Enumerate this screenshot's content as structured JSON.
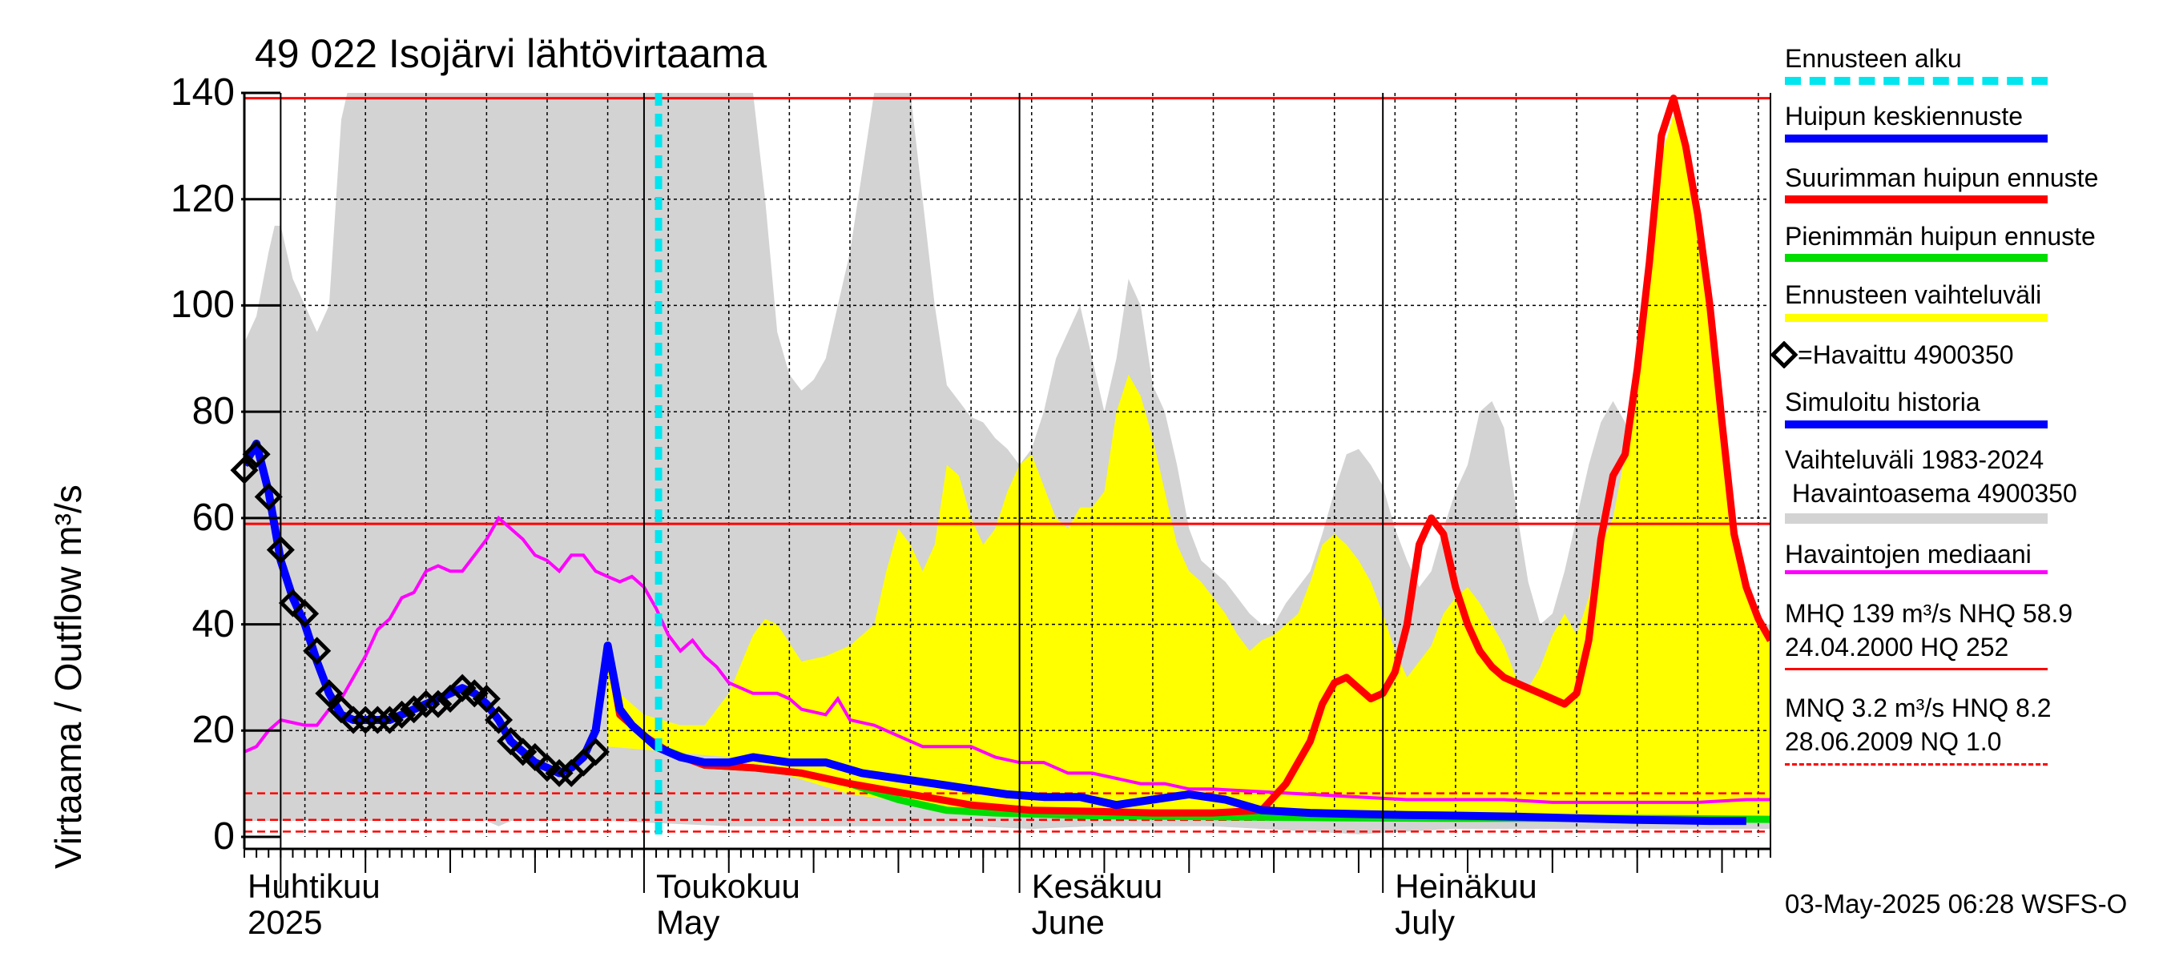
{
  "title": "49 022 Isojärvi lähtövirtaama",
  "ylabel": "Virtaama / Outflow    m³/s",
  "yticks": [
    "0",
    "20",
    "40",
    "60",
    "80",
    "100",
    "120",
    "140"
  ],
  "months": [
    {
      "fi": "Huhtikuu",
      "en": "2025"
    },
    {
      "fi": "Toukokuu",
      "en": "May"
    },
    {
      "fi": "Kesäkuu",
      "en": "June"
    },
    {
      "fi": "Heinäkuu",
      "en": "July"
    }
  ],
  "footer": "03-May-2025 06:28 WSFS-O",
  "legend": {
    "forecast_start": "Ennusteen alku",
    "mean_peak": "Huipun keskiennuste",
    "max_peak": "Suurimman huipun ennuste",
    "min_peak": "Pienimmän huipun ennuste",
    "range": "Ennusteen vaihteluväli",
    "observed": "=Havaittu 4900350",
    "simulated": "Simuloitu historia",
    "hist_range_1": "Vaihteluväli 1983-2024",
    "hist_range_2": " Havaintoasema 4900350",
    "median": "Havaintojen mediaani",
    "mhq_1": "MHQ  139 m³/s NHQ 58.9",
    "mhq_2": "24.04.2000 HQ  252",
    "mnq_1": "MNQ  3.2 m³/s HNQ  8.2",
    "mnq_2": "28.06.2009 NQ  1.0"
  },
  "colors": {
    "forecast_start": "#00e5ee",
    "mean": "#0000ff",
    "max": "#ff0000",
    "min": "#00dd00",
    "range": "#ffff00",
    "hist": "#d3d3d3",
    "median": "#ff00ff",
    "ref": "#ff0000"
  },
  "chart_data": {
    "type": "line",
    "x_unit": "day since 2025-03-29",
    "x_range_dates": [
      "2025-03-29",
      "2025-08-01"
    ],
    "ylim": [
      0,
      140
    ],
    "forecast_start_date": "2025-05-03",
    "reference_lines": {
      "MHQ": 139,
      "NHQ": 58.9,
      "HNQ": 8.2,
      "MNQ": 3.2,
      "NQ": 1.0
    },
    "observed": [
      [
        0,
        69
      ],
      [
        1,
        72
      ],
      [
        2,
        64
      ],
      [
        3,
        54
      ],
      [
        4,
        44
      ],
      [
        5,
        42
      ],
      [
        6,
        35
      ],
      [
        7,
        27
      ],
      [
        8,
        24
      ],
      [
        9,
        22
      ],
      [
        10,
        22
      ],
      [
        11,
        22
      ],
      [
        12,
        22
      ],
      [
        13,
        23
      ],
      [
        14,
        24
      ],
      [
        15,
        25
      ],
      [
        16,
        25
      ],
      [
        17,
        26
      ],
      [
        18,
        28
      ],
      [
        19,
        27
      ],
      [
        20,
        26
      ],
      [
        21,
        22
      ],
      [
        22,
        18
      ],
      [
        23,
        16
      ],
      [
        24,
        15
      ],
      [
        25,
        13
      ],
      [
        26,
        12
      ],
      [
        27,
        12
      ],
      [
        28,
        14
      ],
      [
        29,
        16
      ]
    ],
    "simulated": [
      [
        0,
        70
      ],
      [
        1,
        74
      ],
      [
        2,
        65
      ],
      [
        3,
        52
      ],
      [
        4,
        45
      ],
      [
        5,
        40
      ],
      [
        6,
        33
      ],
      [
        7,
        27
      ],
      [
        8,
        23
      ],
      [
        9,
        22
      ],
      [
        10,
        22
      ],
      [
        11,
        22
      ],
      [
        12,
        22
      ],
      [
        13,
        23
      ],
      [
        14,
        24
      ],
      [
        15,
        25
      ],
      [
        16,
        26
      ],
      [
        17,
        27
      ],
      [
        18,
        28
      ],
      [
        19,
        27
      ],
      [
        20,
        25
      ],
      [
        21,
        22
      ],
      [
        22,
        18
      ],
      [
        23,
        16
      ],
      [
        24,
        14
      ],
      [
        25,
        13
      ],
      [
        26,
        12
      ],
      [
        27,
        13
      ],
      [
        28,
        15
      ],
      [
        29,
        20
      ],
      [
        30,
        36
      ],
      [
        31,
        24
      ],
      [
        32,
        21
      ],
      [
        34,
        17
      ],
      [
        36,
        15
      ],
      [
        38,
        14
      ],
      [
        40,
        14
      ],
      [
        42,
        15
      ],
      [
        45,
        14
      ],
      [
        48,
        14
      ],
      [
        51,
        12
      ],
      [
        54,
        11
      ],
      [
        57,
        10
      ],
      [
        60,
        9
      ],
      [
        63,
        8
      ],
      [
        66,
        7.5
      ],
      [
        69,
        7.5
      ],
      [
        72,
        6
      ],
      [
        75,
        7
      ],
      [
        78,
        8
      ],
      [
        81,
        7
      ],
      [
        84,
        5
      ],
      [
        88,
        4.5
      ],
      [
        92,
        4.3
      ],
      [
        96,
        4.1
      ],
      [
        100,
        4
      ],
      [
        105,
        3.8
      ],
      [
        110,
        3.5
      ],
      [
        115,
        3.2
      ],
      [
        118,
        3.1
      ],
      [
        121,
        3.0
      ],
      [
        124,
        3.0
      ]
    ],
    "max_forecast": [
      [
        30,
        36
      ],
      [
        31,
        23
      ],
      [
        33,
        19
      ],
      [
        35,
        16
      ],
      [
        38,
        13.5
      ],
      [
        42,
        13
      ],
      [
        46,
        12
      ],
      [
        50,
        10
      ],
      [
        55,
        8
      ],
      [
        60,
        6
      ],
      [
        65,
        5
      ],
      [
        70,
        4.8
      ],
      [
        75,
        4.5
      ],
      [
        80,
        4.5
      ],
      [
        84,
        5
      ],
      [
        86,
        10
      ],
      [
        88,
        18
      ],
      [
        89,
        25
      ],
      [
        90,
        29
      ],
      [
        91,
        30
      ],
      [
        92,
        28
      ],
      [
        93,
        26
      ],
      [
        94,
        27
      ],
      [
        95,
        31
      ],
      [
        96,
        40
      ],
      [
        97,
        55
      ],
      [
        98,
        60
      ],
      [
        99,
        57
      ],
      [
        100,
        47
      ],
      [
        101,
        40
      ],
      [
        102,
        35
      ],
      [
        103,
        32
      ],
      [
        104,
        30
      ],
      [
        105,
        29
      ],
      [
        106,
        28
      ],
      [
        107,
        27
      ],
      [
        108,
        26
      ],
      [
        109,
        25
      ],
      [
        110,
        27
      ],
      [
        111,
        37
      ],
      [
        112,
        56
      ],
      [
        113,
        68
      ],
      [
        114,
        72
      ],
      [
        115,
        88
      ],
      [
        116,
        108
      ],
      [
        117,
        132
      ],
      [
        118,
        139
      ],
      [
        119,
        130
      ],
      [
        120,
        117
      ],
      [
        121,
        100
      ],
      [
        122,
        78
      ],
      [
        123,
        57
      ],
      [
        124,
        47
      ],
      [
        125,
        41
      ],
      [
        126,
        37
      ]
    ],
    "min_forecast": [
      [
        30,
        36
      ],
      [
        31,
        23
      ],
      [
        34,
        17
      ],
      [
        38,
        13.5
      ],
      [
        42,
        13
      ],
      [
        46,
        12
      ],
      [
        50,
        10
      ],
      [
        54,
        7
      ],
      [
        58,
        5
      ],
      [
        62,
        4.5
      ],
      [
        70,
        4
      ],
      [
        80,
        3.8
      ],
      [
        90,
        3.6
      ],
      [
        100,
        3.5
      ],
      [
        110,
        3.5
      ],
      [
        120,
        3.4
      ],
      [
        126,
        3.3
      ]
    ],
    "median": [
      [
        0,
        16
      ],
      [
        1,
        17
      ],
      [
        2,
        20
      ],
      [
        3,
        22
      ],
      [
        5,
        21
      ],
      [
        6,
        21
      ],
      [
        7,
        24
      ],
      [
        8,
        26
      ],
      [
        9,
        30
      ],
      [
        10,
        34
      ],
      [
        11,
        39
      ],
      [
        12,
        41
      ],
      [
        13,
        45
      ],
      [
        14,
        46
      ],
      [
        15,
        50
      ],
      [
        16,
        51
      ],
      [
        17,
        50
      ],
      [
        18,
        50
      ],
      [
        19,
        53
      ],
      [
        20,
        56
      ],
      [
        21,
        60
      ],
      [
        22,
        58
      ],
      [
        23,
        56
      ],
      [
        24,
        53
      ],
      [
        25,
        52
      ],
      [
        26,
        50
      ],
      [
        27,
        53
      ],
      [
        28,
        53
      ],
      [
        29,
        50
      ],
      [
        30,
        49
      ],
      [
        31,
        48
      ],
      [
        32,
        49
      ],
      [
        33,
        47
      ],
      [
        34,
        43
      ],
      [
        35,
        38
      ],
      [
        36,
        35
      ],
      [
        37,
        37
      ],
      [
        38,
        34
      ],
      [
        39,
        32
      ],
      [
        40,
        29
      ],
      [
        41,
        28
      ],
      [
        42,
        27
      ],
      [
        44,
        27
      ],
      [
        45,
        26
      ],
      [
        46,
        24
      ],
      [
        48,
        23
      ],
      [
        49,
        26
      ],
      [
        50,
        22
      ],
      [
        52,
        21
      ],
      [
        54,
        19
      ],
      [
        56,
        17
      ],
      [
        58,
        17
      ],
      [
        60,
        17
      ],
      [
        62,
        15
      ],
      [
        64,
        14
      ],
      [
        66,
        14
      ],
      [
        68,
        12
      ],
      [
        70,
        12
      ],
      [
        72,
        11
      ],
      [
        74,
        10
      ],
      [
        76,
        10
      ],
      [
        78,
        9
      ],
      [
        80,
        9
      ],
      [
        84,
        8.5
      ],
      [
        88,
        8
      ],
      [
        92,
        7.5
      ],
      [
        96,
        7
      ],
      [
        100,
        7
      ],
      [
        104,
        7
      ],
      [
        108,
        6.5
      ],
      [
        112,
        6.5
      ],
      [
        116,
        6.5
      ],
      [
        120,
        6.5
      ],
      [
        124,
        7
      ],
      [
        126,
        7
      ]
    ],
    "forecast_range_upper": [
      [
        30,
        35
      ],
      [
        31,
        27
      ],
      [
        33,
        23
      ],
      [
        36,
        21
      ],
      [
        38,
        21
      ],
      [
        40,
        27
      ],
      [
        42,
        38
      ],
      [
        43,
        41
      ],
      [
        44,
        40
      ],
      [
        46,
        33
      ],
      [
        48,
        34
      ],
      [
        50,
        36
      ],
      [
        52,
        40
      ],
      [
        53,
        50
      ],
      [
        54,
        58
      ],
      [
        55,
        55
      ],
      [
        56,
        50
      ],
      [
        57,
        55
      ],
      [
        58,
        70
      ],
      [
        59,
        68
      ],
      [
        60,
        60
      ],
      [
        61,
        55
      ],
      [
        62,
        58
      ],
      [
        63,
        65
      ],
      [
        64,
        70
      ],
      [
        65,
        72
      ],
      [
        66,
        66
      ],
      [
        67,
        60
      ],
      [
        68,
        58
      ],
      [
        69,
        62
      ],
      [
        70,
        62
      ],
      [
        71,
        65
      ],
      [
        72,
        80
      ],
      [
        73,
        87
      ],
      [
        74,
        83
      ],
      [
        75,
        75
      ],
      [
        76,
        65
      ],
      [
        77,
        55
      ],
      [
        78,
        50
      ],
      [
        79,
        48
      ],
      [
        80,
        45
      ],
      [
        81,
        42
      ],
      [
        82,
        38
      ],
      [
        83,
        35
      ],
      [
        84,
        37
      ],
      [
        85,
        38
      ],
      [
        86,
        40
      ],
      [
        87,
        42
      ],
      [
        88,
        48
      ],
      [
        89,
        55
      ],
      [
        90,
        57
      ],
      [
        91,
        55
      ],
      [
        92,
        52
      ],
      [
        93,
        48
      ],
      [
        94,
        42
      ],
      [
        95,
        35
      ],
      [
        96,
        30
      ],
      [
        97,
        33
      ],
      [
        98,
        36
      ],
      [
        99,
        42
      ],
      [
        100,
        45
      ],
      [
        101,
        47
      ],
      [
        102,
        44
      ],
      [
        103,
        40
      ],
      [
        104,
        36
      ],
      [
        105,
        30
      ],
      [
        106,
        28
      ],
      [
        107,
        32
      ],
      [
        108,
        38
      ],
      [
        109,
        42
      ],
      [
        110,
        38
      ],
      [
        111,
        45
      ],
      [
        112,
        55
      ],
      [
        113,
        60
      ],
      [
        114,
        72
      ],
      [
        115,
        90
      ],
      [
        116,
        110
      ],
      [
        117,
        128
      ],
      [
        118,
        136
      ],
      [
        119,
        128
      ],
      [
        120,
        115
      ],
      [
        121,
        100
      ],
      [
        122,
        80
      ],
      [
        123,
        60
      ],
      [
        124,
        48
      ],
      [
        125,
        42
      ],
      [
        126,
        38
      ]
    ],
    "forecast_range_lower": [
      [
        30,
        17
      ],
      [
        40,
        15
      ],
      [
        50,
        8
      ],
      [
        60,
        5
      ],
      [
        70,
        4
      ],
      [
        80,
        3.5
      ],
      [
        90,
        3
      ],
      [
        100,
        3
      ],
      [
        110,
        3
      ],
      [
        120,
        3
      ],
      [
        126,
        2.8
      ]
    ],
    "hist_range_upper": [
      [
        0,
        93
      ],
      [
        1,
        98
      ],
      [
        2,
        110
      ],
      [
        2.5,
        115
      ],
      [
        3,
        115
      ],
      [
        4,
        105
      ],
      [
        5,
        100
      ],
      [
        6,
        95
      ],
      [
        7,
        100
      ],
      [
        8,
        135
      ],
      [
        8.5,
        140
      ],
      [
        42,
        140
      ],
      [
        43,
        120
      ],
      [
        44,
        95
      ],
      [
        45,
        87
      ],
      [
        46,
        84
      ],
      [
        47,
        86
      ],
      [
        48,
        90
      ],
      [
        49,
        100
      ],
      [
        50,
        110
      ],
      [
        51,
        125
      ],
      [
        52,
        140
      ],
      [
        55,
        140
      ],
      [
        56,
        120
      ],
      [
        57,
        100
      ],
      [
        58,
        85
      ],
      [
        59,
        82
      ],
      [
        60,
        79
      ],
      [
        61,
        78
      ],
      [
        62,
        75
      ],
      [
        63,
        73
      ],
      [
        64,
        70
      ],
      [
        65,
        73
      ],
      [
        66,
        80
      ],
      [
        67,
        90
      ],
      [
        68,
        95
      ],
      [
        69,
        100
      ],
      [
        70,
        90
      ],
      [
        71,
        80
      ],
      [
        72,
        90
      ],
      [
        73,
        105
      ],
      [
        74,
        100
      ],
      [
        75,
        85
      ],
      [
        76,
        80
      ],
      [
        77,
        70
      ],
      [
        78,
        58
      ],
      [
        79,
        52
      ],
      [
        80,
        50
      ],
      [
        81,
        48
      ],
      [
        82,
        45
      ],
      [
        83,
        42
      ],
      [
        84,
        40
      ],
      [
        85,
        40
      ],
      [
        86,
        44
      ],
      [
        87,
        47
      ],
      [
        88,
        50
      ],
      [
        89,
        57
      ],
      [
        90,
        65
      ],
      [
        91,
        72
      ],
      [
        92,
        73
      ],
      [
        93,
        70
      ],
      [
        94,
        66
      ],
      [
        95,
        58
      ],
      [
        96,
        52
      ],
      [
        97,
        47
      ],
      [
        98,
        50
      ],
      [
        99,
        58
      ],
      [
        100,
        65
      ],
      [
        101,
        70
      ],
      [
        102,
        80
      ],
      [
        103,
        82
      ],
      [
        104,
        77
      ],
      [
        105,
        62
      ],
      [
        106,
        48
      ],
      [
        107,
        40
      ],
      [
        108,
        42
      ],
      [
        109,
        50
      ],
      [
        110,
        60
      ],
      [
        111,
        70
      ],
      [
        112,
        78
      ],
      [
        113,
        82
      ],
      [
        114,
        78
      ],
      [
        115,
        65
      ],
      [
        116,
        70
      ],
      [
        117,
        90
      ],
      [
        118,
        100
      ],
      [
        119,
        95
      ],
      [
        120,
        80
      ],
      [
        121,
        63
      ],
      [
        122,
        55
      ],
      [
        123,
        48
      ],
      [
        124,
        42
      ],
      [
        125,
        40
      ],
      [
        126,
        40
      ]
    ],
    "hist_range_lower": [
      [
        0,
        3
      ],
      [
        20,
        3
      ],
      [
        21,
        2
      ],
      [
        22,
        3
      ],
      [
        30,
        3
      ],
      [
        40,
        2
      ],
      [
        50,
        2
      ],
      [
        60,
        2
      ],
      [
        65,
        1.5
      ],
      [
        70,
        2
      ],
      [
        80,
        2
      ],
      [
        88,
        1
      ],
      [
        92,
        0.5
      ],
      [
        96,
        1
      ],
      [
        100,
        1.5
      ],
      [
        110,
        1.5
      ],
      [
        126,
        1.5
      ]
    ]
  }
}
